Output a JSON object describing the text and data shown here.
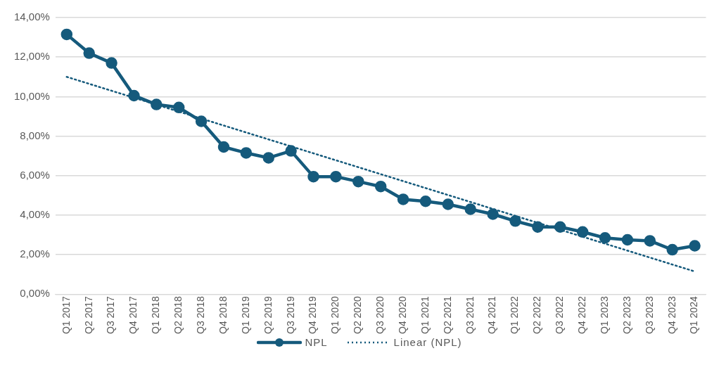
{
  "chart_data": {
    "type": "line",
    "categories": [
      "Q1 2017",
      "Q2 2017",
      "Q3 2017",
      "Q4 2017",
      "Q1 2018",
      "Q2 2018",
      "Q3 2018",
      "Q4 2018",
      "Q1 2019",
      "Q2 2019",
      "Q3 2019",
      "Q4 2019",
      "Q1 2020",
      "Q2 2020",
      "Q3 2020",
      "Q4 2020",
      "Q1 2021",
      "Q2 2021",
      "Q3 2021",
      "Q4 2021",
      "Q1 2022",
      "Q2 2022",
      "Q3 2022",
      "Q4 2022",
      "Q1 2023",
      "Q2 2023",
      "Q3 2023",
      "Q4 2023",
      "Q1 2024"
    ],
    "series": [
      {
        "name": "NPL",
        "color": "#155a7c",
        "marker": "circle",
        "line_style": "solid",
        "values": [
          13.15,
          12.2,
          11.7,
          10.05,
          9.6,
          9.45,
          8.75,
          7.45,
          7.15,
          6.9,
          7.25,
          5.95,
          5.95,
          5.7,
          5.45,
          4.8,
          4.7,
          4.55,
          4.3,
          4.05,
          3.7,
          3.4,
          3.4,
          3.15,
          2.85,
          2.75,
          2.7,
          2.25,
          2.45
        ]
      },
      {
        "name": "Linear (NPL)",
        "type": "line",
        "color": "#155a7c",
        "marker": "none",
        "line_style": "dotted",
        "x": [
          "Q1 2017",
          "Q1 2024"
        ],
        "values": [
          11.0,
          1.15
        ]
      }
    ],
    "ylim": [
      0,
      14
    ],
    "yticks": [
      {
        "value": 0,
        "label": "0,00%"
      },
      {
        "value": 2,
        "label": "2,00%"
      },
      {
        "value": 4,
        "label": "4,00%"
      },
      {
        "value": 6,
        "label": "6,00%"
      },
      {
        "value": 8,
        "label": "8,00%"
      },
      {
        "value": 10,
        "label": "10,00%"
      },
      {
        "value": 12,
        "label": "12,00%"
      },
      {
        "value": 14,
        "label": "14,00%"
      }
    ],
    "grid": "y",
    "legend": "bottom"
  }
}
